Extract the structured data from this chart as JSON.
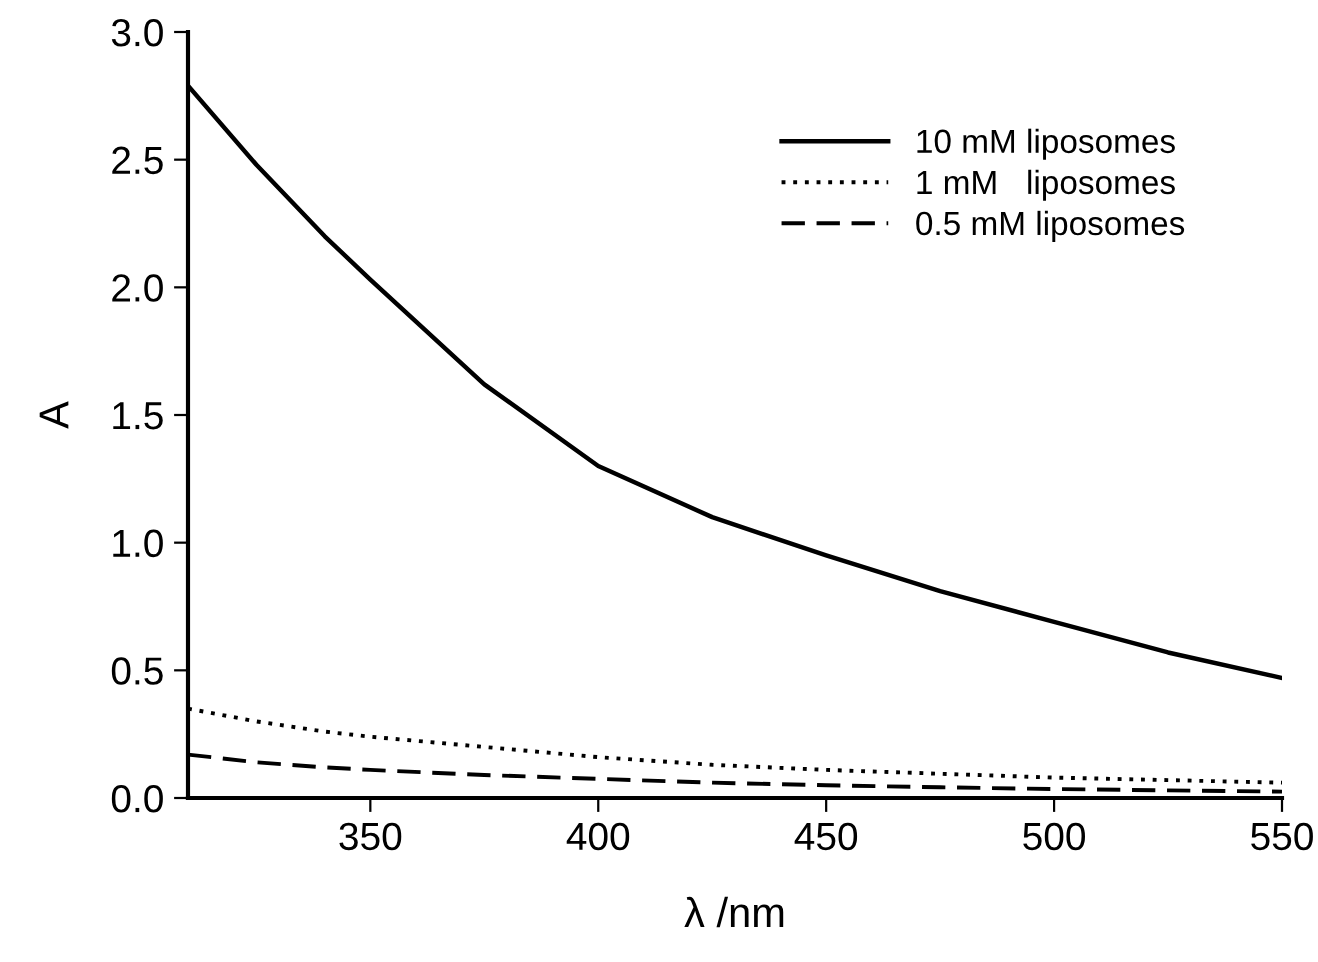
{
  "chart_data": {
    "type": "line",
    "xlabel": "λ /nm",
    "ylabel": "A",
    "xlim": [
      310,
      550
    ],
    "ylim": [
      0,
      3.0
    ],
    "xticks": [
      350,
      400,
      450,
      500,
      550
    ],
    "yticks": [
      {
        "value": 0,
        "label": "0.0"
      },
      {
        "value": 0.5,
        "label": "0.5"
      },
      {
        "value": 1,
        "label": "1.0"
      },
      {
        "value": 1.5,
        "label": "1.5"
      },
      {
        "value": 2,
        "label": "2.0"
      },
      {
        "value": 2.5,
        "label": "2.5"
      },
      {
        "value": 3,
        "label": "3.0"
      }
    ],
    "grid": false,
    "legend": "top right",
    "x": [
      310,
      325,
      340,
      350,
      375,
      400,
      425,
      450,
      475,
      500,
      525,
      550
    ],
    "series": [
      {
        "name": "10 mM liposomes",
        "color": "#000000",
        "line_style": "solid",
        "values": [
          2.79,
          2.48,
          2.2,
          2.03,
          1.62,
          1.3,
          1.1,
          0.95,
          0.81,
          0.69,
          0.57,
          0.47
        ]
      },
      {
        "name": "1 mM   liposomes",
        "color": "#000000",
        "line_style": "dotted",
        "values": [
          0.35,
          0.3,
          0.26,
          0.24,
          0.2,
          0.16,
          0.13,
          0.11,
          0.095,
          0.08,
          0.07,
          0.06
        ]
      },
      {
        "name": "0.5 mM liposomes",
        "color": "#000000",
        "line_style": "dashed",
        "values": [
          0.17,
          0.14,
          0.12,
          0.11,
          0.09,
          0.075,
          0.06,
          0.05,
          0.042,
          0.035,
          0.03,
          0.025
        ]
      }
    ]
  }
}
